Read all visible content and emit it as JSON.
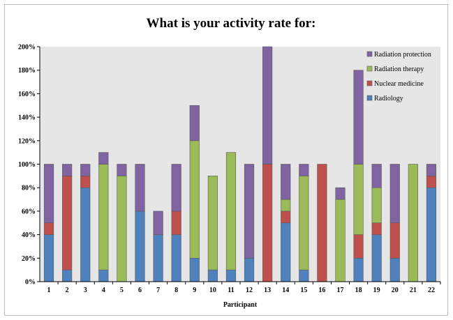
{
  "chart_data": {
    "type": "bar",
    "stacked": true,
    "title": "What is your activity rate for:",
    "xlabel": "Participant",
    "ylabel": "",
    "categories": [
      "1",
      "2",
      "3",
      "4",
      "5",
      "6",
      "7",
      "8",
      "9",
      "10",
      "11",
      "12",
      "13",
      "14",
      "15",
      "16",
      "17",
      "18",
      "19",
      "20",
      "21",
      "22"
    ],
    "y_ticks": [
      "0%",
      "20%",
      "40%",
      "60%",
      "80%",
      "100%",
      "120%",
      "140%",
      "160%",
      "180%",
      "200%"
    ],
    "ylim": [
      0,
      200
    ],
    "grid": false,
    "legend_position": "top-right",
    "series": [
      {
        "name": "Radiology",
        "color": "#4f81bd",
        "values": [
          40,
          10,
          80,
          10,
          0,
          60,
          40,
          40,
          20,
          10,
          10,
          20,
          0,
          50,
          10,
          0,
          0,
          20,
          40,
          20,
          0,
          80
        ]
      },
      {
        "name": "Nuclear medicine",
        "color": "#c0504d",
        "values": [
          10,
          80,
          10,
          0,
          0,
          0,
          0,
          20,
          0,
          0,
          0,
          0,
          100,
          10,
          0,
          100,
          0,
          20,
          10,
          30,
          0,
          10
        ]
      },
      {
        "name": "Radiation therapy",
        "color": "#9bbb59",
        "values": [
          0,
          0,
          0,
          90,
          90,
          0,
          0,
          0,
          100,
          80,
          100,
          0,
          0,
          10,
          80,
          0,
          70,
          60,
          30,
          0,
          100,
          0
        ]
      },
      {
        "name": "Radiation protection",
        "color": "#8064a2",
        "values": [
          50,
          10,
          10,
          10,
          10,
          40,
          20,
          40,
          30,
          0,
          0,
          80,
          100,
          30,
          10,
          0,
          10,
          80,
          20,
          50,
          0,
          10
        ]
      }
    ]
  },
  "colors": {
    "plot_background": "#e6e6e6",
    "bar_stroke": "#595959"
  }
}
